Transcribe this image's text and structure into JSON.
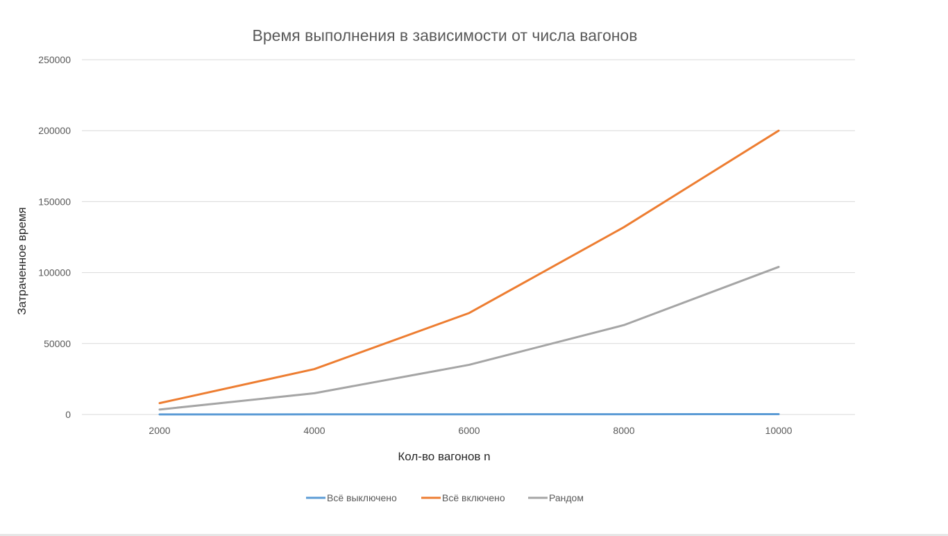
{
  "chart_data": {
    "type": "line",
    "title": "Время выполнения в зависимости от числа вагонов",
    "xlabel": "Кол-во вагонов n",
    "ylabel": "Затраченное время",
    "categories": [
      "2000",
      "4000",
      "6000",
      "8000",
      "10000"
    ],
    "ylim": [
      0,
      250000
    ],
    "yticks": [
      0,
      50000,
      100000,
      150000,
      200000,
      250000
    ],
    "grid": true,
    "legend_position": "bottom",
    "series": [
      {
        "name": "Всё выключено",
        "color": "#5b9bd5",
        "values": [
          50,
          100,
          150,
          200,
          250
        ]
      },
      {
        "name": "Всё включено",
        "color": "#ed7d31",
        "values": [
          8000,
          32000,
          71500,
          132000,
          200000
        ]
      },
      {
        "name": "Рандом",
        "color": "#a5a5a5",
        "values": [
          3500,
          15000,
          35000,
          63000,
          104000
        ]
      }
    ]
  }
}
